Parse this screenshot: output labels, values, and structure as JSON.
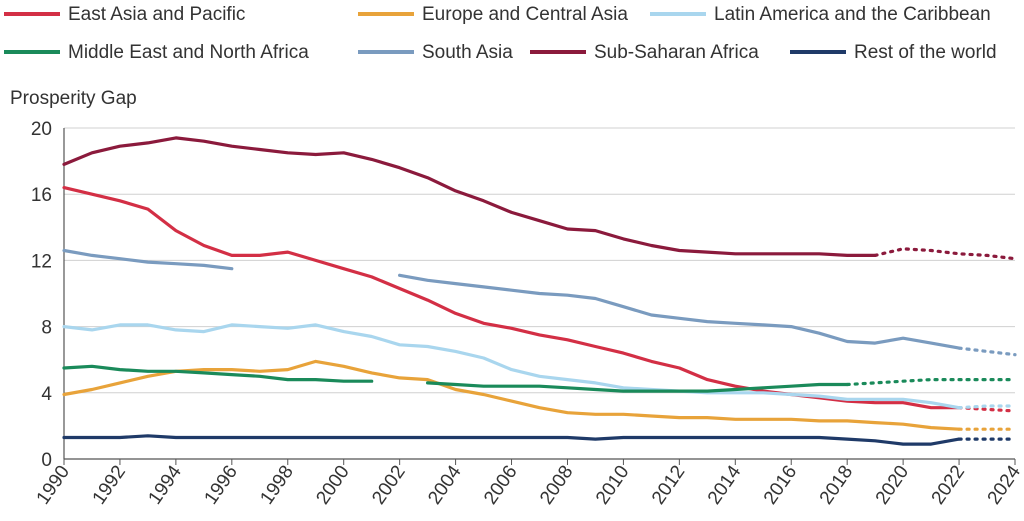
{
  "chart_data": {
    "type": "line",
    "ylabel": "Prosperity Gap",
    "xlabel": "",
    "ylim": [
      0,
      20
    ],
    "xlim": [
      1990,
      2024
    ],
    "yticks": [
      0,
      4,
      8,
      12,
      16,
      20
    ],
    "xticks": [
      1990,
      1992,
      1994,
      1996,
      1998,
      2000,
      2002,
      2004,
      2006,
      2008,
      2010,
      2012,
      2014,
      2016,
      2018,
      2020,
      2022,
      2024
    ],
    "grid": "horizontal",
    "legend_position": "top",
    "series": [
      {
        "name": "East Asia and Pacific",
        "color": "#d32f45",
        "x": [
          1990,
          1991,
          1992,
          1993,
          1994,
          1995,
          1996,
          1997,
          1998,
          1999,
          2000,
          2001,
          2002,
          2003,
          2004,
          2005,
          2006,
          2007,
          2008,
          2009,
          2010,
          2011,
          2012,
          2013,
          2014,
          2015,
          2016,
          2017,
          2018,
          2019,
          2020,
          2021,
          2022
        ],
        "y": [
          16.4,
          16.0,
          15.6,
          15.1,
          13.8,
          12.9,
          12.3,
          12.3,
          12.5,
          12.0,
          11.5,
          11.0,
          10.3,
          9.6,
          8.8,
          8.2,
          7.9,
          7.5,
          7.2,
          6.8,
          6.4,
          5.9,
          5.5,
          4.8,
          4.4,
          4.1,
          3.9,
          3.7,
          3.5,
          3.4,
          3.4,
          3.1,
          3.1
        ],
        "projection_x": [
          2022,
          2023,
          2024
        ],
        "projection_y": [
          3.1,
          3.0,
          2.9
        ]
      },
      {
        "name": "Europe and Central Asia",
        "color": "#e8a33a",
        "x": [
          1990,
          1991,
          1992,
          1993,
          1994,
          1995,
          1996,
          1997,
          1998,
          1999,
          2000,
          2001,
          2002,
          2003,
          2004,
          2005,
          2006,
          2007,
          2008,
          2009,
          2010,
          2011,
          2012,
          2013,
          2014,
          2015,
          2016,
          2017,
          2018,
          2019,
          2020,
          2021,
          2022
        ],
        "y": [
          3.9,
          4.2,
          4.6,
          5.0,
          5.3,
          5.4,
          5.4,
          5.3,
          5.4,
          5.9,
          5.6,
          5.2,
          4.9,
          4.8,
          4.2,
          3.9,
          3.5,
          3.1,
          2.8,
          2.7,
          2.7,
          2.6,
          2.5,
          2.5,
          2.4,
          2.4,
          2.4,
          2.3,
          2.3,
          2.2,
          2.1,
          1.9,
          1.8
        ],
        "projection_x": [
          2022,
          2023,
          2024
        ],
        "projection_y": [
          1.8,
          1.8,
          1.8
        ]
      },
      {
        "name": "Latin America and the Caribbean",
        "color": "#a9d6ee",
        "x": [
          1990,
          1991,
          1992,
          1993,
          1994,
          1995,
          1996,
          1997,
          1998,
          1999,
          2000,
          2001,
          2002,
          2003,
          2004,
          2005,
          2006,
          2007,
          2008,
          2009,
          2010,
          2011,
          2012,
          2013,
          2014,
          2015,
          2016,
          2017,
          2018,
          2019,
          2020,
          2021,
          2022
        ],
        "y": [
          8.0,
          7.8,
          8.1,
          8.1,
          7.8,
          7.7,
          8.1,
          8.0,
          7.9,
          8.1,
          7.7,
          7.4,
          6.9,
          6.8,
          6.5,
          6.1,
          5.4,
          5.0,
          4.8,
          4.6,
          4.3,
          4.2,
          4.1,
          4.0,
          4.0,
          4.0,
          3.9,
          3.8,
          3.6,
          3.6,
          3.6,
          3.4,
          3.1
        ],
        "projection_x": [
          2022,
          2023,
          2024
        ],
        "projection_y": [
          3.1,
          3.2,
          3.2
        ]
      },
      {
        "name": "Middle East and North Africa",
        "color": "#1a8a5a",
        "x": [
          1990,
          1991,
          1992,
          1993,
          1994,
          1995,
          1996,
          1997,
          1998,
          1999,
          2000,
          2001
        ],
        "y": [
          5.5,
          5.6,
          5.4,
          5.3,
          5.3,
          5.2,
          5.1,
          5.0,
          4.8,
          4.8,
          4.7,
          4.7
        ],
        "x2": [
          2003,
          2004,
          2005,
          2006,
          2007,
          2008,
          2009,
          2010,
          2011,
          2012,
          2013,
          2014,
          2015,
          2016,
          2017,
          2018
        ],
        "y2": [
          4.6,
          4.5,
          4.4,
          4.4,
          4.4,
          4.3,
          4.2,
          4.1,
          4.1,
          4.1,
          4.1,
          4.2,
          4.3,
          4.4,
          4.5,
          4.5
        ],
        "projection_x": [
          2018,
          2019,
          2020,
          2021,
          2022,
          2023,
          2024
        ],
        "projection_y": [
          4.5,
          4.6,
          4.7,
          4.8,
          4.8,
          4.8,
          4.8
        ]
      },
      {
        "name": "South Asia",
        "color": "#7a9bbf",
        "x": [
          1990,
          1991,
          1992,
          1993,
          1994,
          1995,
          1996
        ],
        "y": [
          12.6,
          12.3,
          12.1,
          11.9,
          11.8,
          11.7,
          11.5
        ],
        "x2": [
          2002,
          2003,
          2004,
          2005,
          2006,
          2007,
          2008,
          2009,
          2010,
          2011,
          2012,
          2013,
          2014,
          2015,
          2016,
          2017,
          2018,
          2019,
          2020,
          2021,
          2022
        ],
        "y2": [
          11.1,
          10.8,
          10.6,
          10.4,
          10.2,
          10.0,
          9.9,
          9.7,
          9.2,
          8.7,
          8.5,
          8.3,
          8.2,
          8.1,
          8.0,
          7.6,
          7.1,
          7.0,
          7.3,
          7.0,
          6.7
        ],
        "projection_x": [
          2022,
          2023,
          2024
        ],
        "projection_y": [
          6.7,
          6.5,
          6.3
        ]
      },
      {
        "name": "Sub-Saharan Africa",
        "color": "#8b1a3c",
        "x": [
          1990,
          1991,
          1992,
          1993,
          1994,
          1995,
          1996,
          1997,
          1998,
          1999,
          2000,
          2001,
          2002,
          2003,
          2004,
          2005,
          2006,
          2007,
          2008,
          2009,
          2010,
          2011,
          2012,
          2013,
          2014,
          2015,
          2016,
          2017,
          2018,
          2019
        ],
        "y": [
          17.8,
          18.5,
          18.9,
          19.1,
          19.4,
          19.2,
          18.9,
          18.7,
          18.5,
          18.4,
          18.5,
          18.1,
          17.6,
          17.0,
          16.2,
          15.6,
          14.9,
          14.4,
          13.9,
          13.8,
          13.3,
          12.9,
          12.6,
          12.5,
          12.4,
          12.4,
          12.4,
          12.4,
          12.3,
          12.3
        ],
        "projection_x": [
          2019,
          2020,
          2021,
          2022,
          2023,
          2024
        ],
        "projection_y": [
          12.3,
          12.7,
          12.6,
          12.4,
          12.3,
          12.1
        ]
      },
      {
        "name": "Rest of the world",
        "color": "#1f3a68",
        "x": [
          1990,
          1991,
          1992,
          1993,
          1994,
          1995,
          1996,
          1997,
          1998,
          1999,
          2000,
          2001,
          2002,
          2003,
          2004,
          2005,
          2006,
          2007,
          2008,
          2009,
          2010,
          2011,
          2012,
          2013,
          2014,
          2015,
          2016,
          2017,
          2018,
          2019,
          2020,
          2021,
          2022
        ],
        "y": [
          1.3,
          1.3,
          1.3,
          1.4,
          1.3,
          1.3,
          1.3,
          1.3,
          1.3,
          1.3,
          1.3,
          1.3,
          1.3,
          1.3,
          1.3,
          1.3,
          1.3,
          1.3,
          1.3,
          1.2,
          1.3,
          1.3,
          1.3,
          1.3,
          1.3,
          1.3,
          1.3,
          1.3,
          1.2,
          1.1,
          0.9,
          0.9,
          1.2
        ],
        "projection_x": [
          2022,
          2023,
          2024
        ],
        "projection_y": [
          1.2,
          1.2,
          1.2
        ]
      }
    ]
  }
}
